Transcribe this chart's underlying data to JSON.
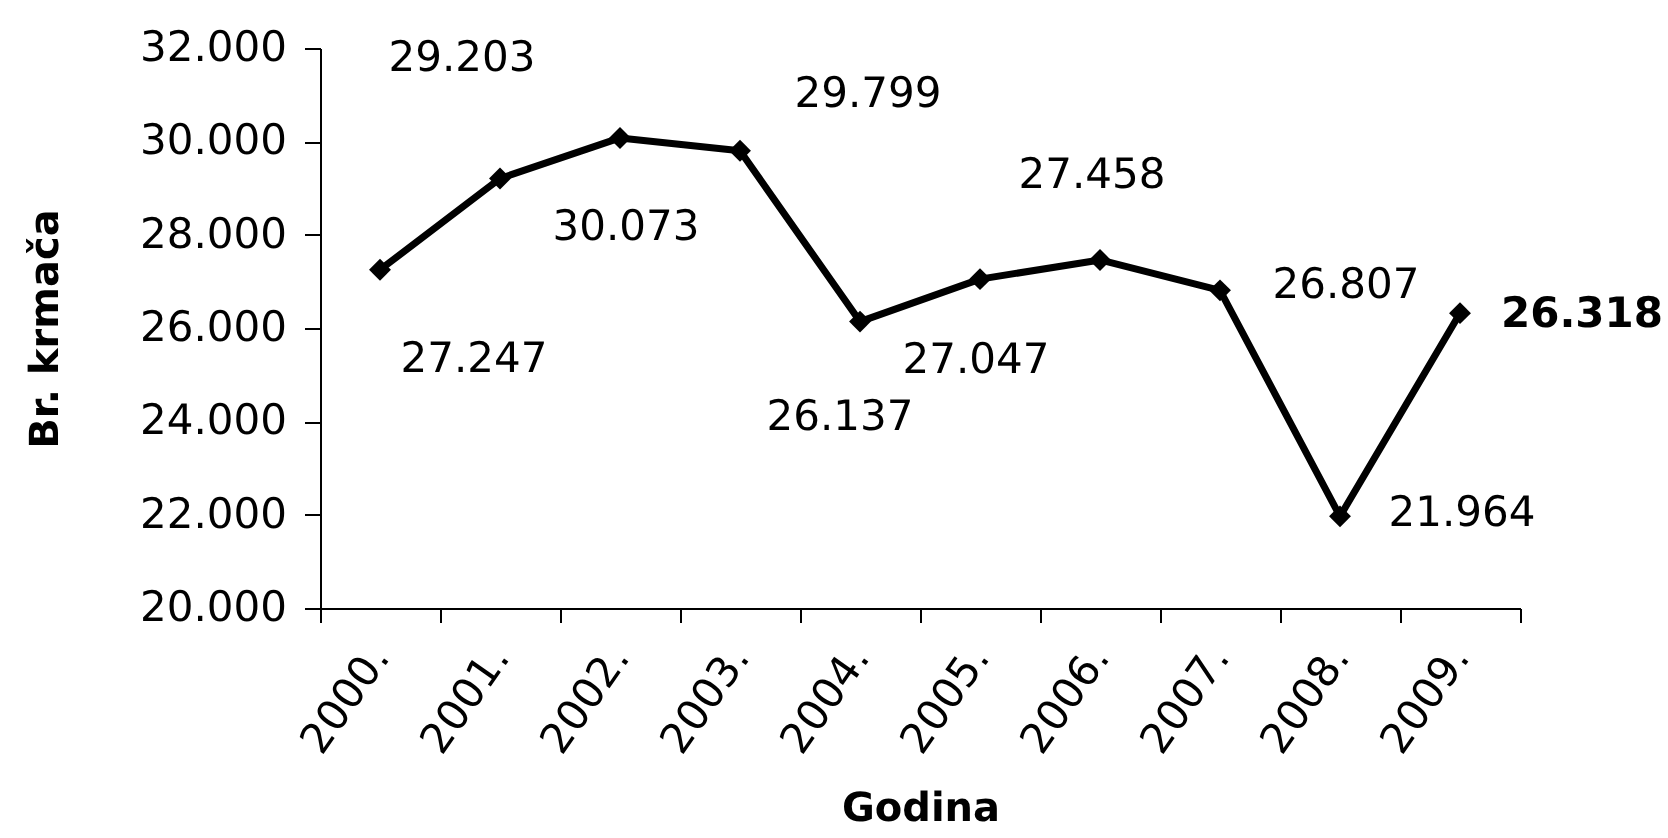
{
  "chart_data": {
    "type": "line",
    "xlabel": "Godina",
    "ylabel": "Br. krmača",
    "categories": [
      "2000.",
      "2001.",
      "2002.",
      "2003.",
      "2004.",
      "2005.",
      "2006.",
      "2007.",
      "2008.",
      "2009."
    ],
    "series": [
      {
        "color": "#000000",
        "values": [
          27247,
          29203,
          30073,
          29799,
          26137,
          27047,
          27458,
          26807,
          21964,
          26318
        ],
        "value_labels": [
          "27.247",
          "29.203",
          "30.073",
          "29.799",
          "26.137",
          "27.047",
          "27.458",
          "26.807",
          "21.964",
          "26.318"
        ]
      }
    ],
    "ylim": [
      20000,
      32000
    ],
    "yticks": [
      {
        "value": 20000,
        "label": "20.000"
      },
      {
        "value": 22000,
        "label": "22.000"
      },
      {
        "value": 24000,
        "label": "24.000"
      },
      {
        "value": 26000,
        "label": "26.000"
      },
      {
        "value": 28000,
        "label": "28.000"
      },
      {
        "value": 30000,
        "label": "30.000"
      },
      {
        "value": 32000,
        "label": "32.000"
      }
    ],
    "marker": "diamond",
    "line_style": "solid",
    "grid": false
  }
}
